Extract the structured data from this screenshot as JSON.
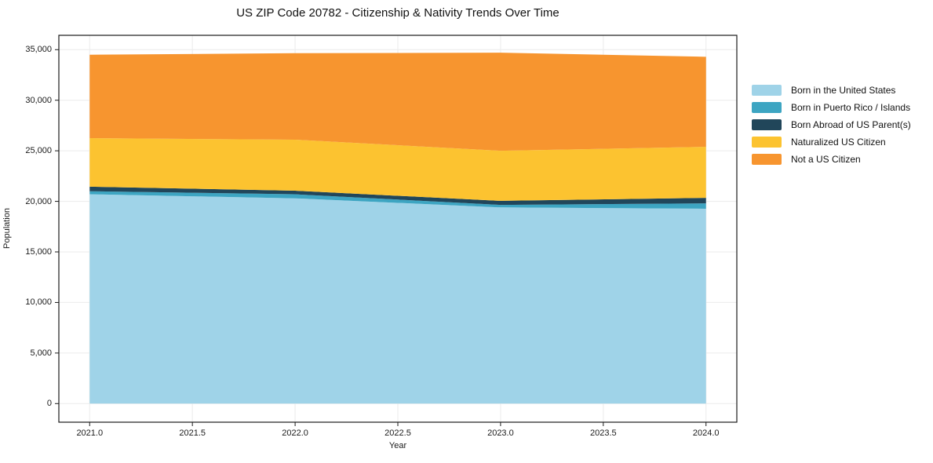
{
  "chart_data": {
    "type": "area",
    "stacked": true,
    "title": "US ZIP Code 20782 - Citizenship & Nativity Trends Over Time",
    "xlabel": "Year",
    "ylabel": "Population",
    "x": [
      2021,
      2022,
      2023,
      2024
    ],
    "series": [
      {
        "name": "Born in the United States",
        "color": "#9FD3E8",
        "values": [
          20700,
          20300,
          19400,
          19270
        ]
      },
      {
        "name": "Born in Puerto Rico / Islands",
        "color": "#3DA5C2",
        "values": [
          300,
          400,
          250,
          530
        ]
      },
      {
        "name": "Born Abroad of US Parent(s)",
        "color": "#21465A",
        "values": [
          450,
          350,
          400,
          550
        ]
      },
      {
        "name": "Naturalized US Citizen",
        "color": "#FCC330",
        "values": [
          4800,
          5050,
          4950,
          5050
        ]
      },
      {
        "name": "Not a US Citizen",
        "color": "#F7952F",
        "values": [
          8250,
          8550,
          9700,
          8900
        ]
      }
    ],
    "x_ticks": [
      2021.0,
      2021.5,
      2022.0,
      2022.5,
      2023.0,
      2023.5,
      2024.0
    ],
    "x_tick_labels": [
      "2021.0",
      "2021.5",
      "2022.0",
      "2022.5",
      "2023.0",
      "2023.5",
      "2024.0"
    ],
    "y_ticks": [
      0,
      5000,
      10000,
      15000,
      20000,
      25000,
      30000,
      35000
    ],
    "y_tick_labels": [
      "0",
      "5,000",
      "10,000",
      "15,000",
      "20,000",
      "25,000",
      "30,000",
      "35,000"
    ],
    "xlim": [
      2020.85,
      2024.15
    ],
    "ylim": [
      -1840,
      36420
    ],
    "grid": true,
    "legend_position": "right",
    "colors": {
      "grid": "#ebebeb",
      "spine": "#1a1a1a",
      "background": "#ffffff"
    }
  }
}
